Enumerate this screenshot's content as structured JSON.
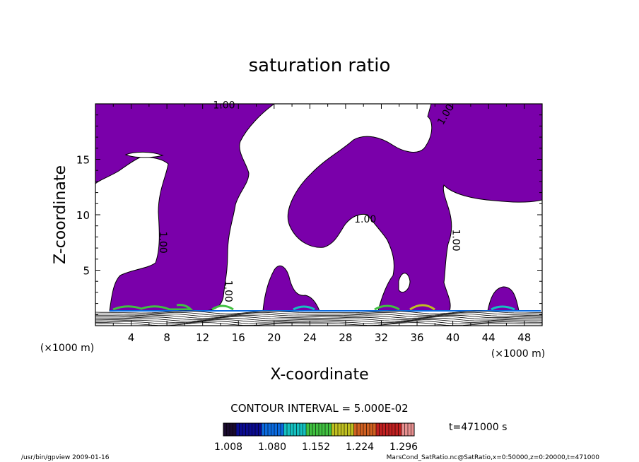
{
  "chart_data": {
    "type": "contour",
    "title": "saturation ratio",
    "xlabel": "X-coordinate",
    "ylabel": "Z-coordinate",
    "xunit": "(×1000 m)",
    "yunit": "(×1000 m)",
    "xlim": [
      0,
      50
    ],
    "ylim": [
      0,
      20
    ],
    "xticks": [
      4,
      8,
      12,
      16,
      20,
      24,
      28,
      32,
      36,
      40,
      44,
      48
    ],
    "yticks": [
      5,
      10,
      15
    ],
    "contour_interval_text": "CONTOUR INTERVAL = 5.000E-02",
    "colorbar": {
      "ticks": [
        "1.008",
        "1.080",
        "1.152",
        "1.224",
        "1.296"
      ],
      "colors": [
        "#1a0a2e",
        "#0b0b90",
        "#0a6adf",
        "#13c0c0",
        "#40c040",
        "#c0c020",
        "#d06020",
        "#c02020",
        "#e89090"
      ]
    },
    "fill_color": "#7a00aa",
    "contour_labels": [
      {
        "text": "1.00",
        "x": 14.4,
        "z": 19.6
      },
      {
        "text": "1.00",
        "x": 7.2,
        "z": 7.5,
        "angle": 90
      },
      {
        "text": "1.00",
        "x": 14.5,
        "z": 3.1,
        "angle": 90
      },
      {
        "text": "1.00",
        "x": 30.2,
        "z": 9.3
      },
      {
        "text": "1.00",
        "x": 39.5,
        "z": 18.9,
        "angle": -60
      },
      {
        "text": "1.00",
        "x": 40.0,
        "z": 7.7,
        "angle": 90
      }
    ],
    "time_label": "t=471000 s"
  },
  "footer": {
    "left": "/usr/bin/gpview  2009-01-16",
    "right": "MarsCond_SatRatio.nc@SatRatio,x=0:50000,z=0:20000,t=471000"
  }
}
